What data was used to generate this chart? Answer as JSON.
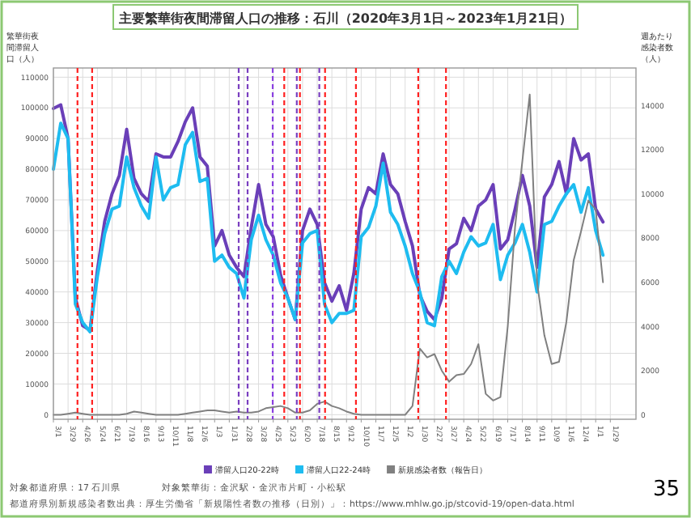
{
  "chart_data": {
    "type": "line",
    "title": "主要繁華街夜間滞留人口の推移：石川（2020年3月1日～2023年1月21日）",
    "ylabel": "繁華街夜間滞留人口（人）",
    "y2label": "週あたり感染者数（人）",
    "x": [
      "2020-03-01",
      "2020-03-15",
      "2020-03-29",
      "2020-04-12",
      "2020-04-26",
      "2020-05-10",
      "2020-05-24",
      "2020-06-07",
      "2020-06-21",
      "2020-07-05",
      "2020-07-19",
      "2020-08-02",
      "2020-08-16",
      "2020-08-30",
      "2020-09-13",
      "2020-09-27",
      "2020-10-11",
      "2020-10-25",
      "2020-11-08",
      "2020-11-22",
      "2020-12-06",
      "2020-12-20",
      "2021-01-03",
      "2021-01-17",
      "2021-01-31",
      "2021-02-14",
      "2021-02-28",
      "2021-03-14",
      "2021-03-28",
      "2021-04-11",
      "2021-04-25",
      "2021-05-09",
      "2021-05-23",
      "2021-06-06",
      "2021-06-20",
      "2021-07-04",
      "2021-07-18",
      "2021-08-01",
      "2021-08-15",
      "2021-08-29",
      "2021-09-12",
      "2021-09-26",
      "2021-10-10",
      "2021-10-24",
      "2021-11-07",
      "2021-11-21",
      "2021-12-05",
      "2021-12-19",
      "2022-01-02",
      "2022-01-16",
      "2022-01-30",
      "2022-02-13",
      "2022-02-27",
      "2022-03-13",
      "2022-03-27",
      "2022-04-10",
      "2022-04-24",
      "2022-05-08",
      "2022-05-22",
      "2022-06-05",
      "2022-06-19",
      "2022-07-03",
      "2022-07-17",
      "2022-07-31",
      "2022-08-14",
      "2022-08-28",
      "2022-09-11",
      "2022-09-25",
      "2022-10-09",
      "2022-10-23",
      "2022-11-06",
      "2022-11-20",
      "2022-12-04",
      "2022-12-18",
      "2023-01-01",
      "2023-01-15"
    ],
    "series": [
      {
        "name": "滞留人口20-22時",
        "color": "#6a3fb8",
        "values": [
          99800,
          101000,
          90000,
          38000,
          29000,
          27500,
          47000,
          63000,
          72000,
          78000,
          93000,
          77000,
          72000,
          69500,
          85000,
          84000,
          84000,
          89000,
          95500,
          100000,
          84000,
          81000,
          55000,
          60000,
          52000,
          48000,
          45000,
          61000,
          75000,
          62000,
          58000,
          45500,
          38000,
          31000,
          60000,
          67000,
          62000,
          43000,
          37000,
          42000,
          34000,
          46000,
          67000,
          74000,
          72000,
          85000,
          75000,
          72000,
          63000,
          55000,
          39000,
          33700,
          31000,
          38000,
          54000,
          55700,
          64000,
          60000,
          68000,
          70000,
          75000,
          54000,
          57000,
          67000,
          78000,
          68000,
          48000,
          71000,
          75000,
          82500,
          72000,
          90000,
          83000,
          85000,
          67000,
          62800
        ]
      },
      {
        "name": "滞留人口22-24時",
        "color": "#1ebcf0",
        "values": [
          80000,
          95000,
          90000,
          36000,
          30000,
          27000,
          45000,
          59000,
          67000,
          68000,
          84000,
          74000,
          68000,
          64000,
          84000,
          70000,
          74000,
          75000,
          88000,
          92000,
          76000,
          77000,
          50000,
          52000,
          48000,
          46000,
          38000,
          57000,
          65000,
          57000,
          52000,
          43000,
          38000,
          31000,
          56000,
          59000,
          60000,
          36000,
          30000,
          33000,
          33000,
          34000,
          58000,
          61000,
          68000,
          82000,
          66000,
          62000,
          55000,
          46000,
          40000,
          30000,
          29000,
          45000,
          50000,
          46000,
          53000,
          58000,
          55000,
          56000,
          62000,
          44000,
          52000,
          56000,
          62000,
          53000,
          40000,
          62000,
          63000,
          68000,
          72000,
          75000,
          66000,
          74000,
          60000,
          52000
        ]
      },
      {
        "name": "新規感染者数（報告日）",
        "color": "#808080",
        "axis": "y2",
        "values": [
          0,
          0,
          50,
          100,
          50,
          0,
          0,
          0,
          0,
          0,
          50,
          150,
          100,
          50,
          0,
          0,
          0,
          0,
          50,
          100,
          150,
          200,
          200,
          150,
          100,
          150,
          100,
          100,
          150,
          300,
          350,
          400,
          300,
          100,
          100,
          200,
          500,
          600,
          400,
          300,
          150,
          50,
          0,
          0,
          0,
          0,
          0,
          0,
          0,
          400,
          3000,
          2600,
          2750,
          2000,
          1500,
          1800,
          1850,
          2300,
          3200,
          950,
          650,
          800,
          4000,
          8500,
          11500,
          14500,
          6000,
          3600,
          2300,
          2400,
          4200,
          7000,
          8300,
          9700,
          9300,
          6000
        ]
      }
    ],
    "xlim": [
      "2020-03-01",
      "2023-03-19"
    ],
    "xticks": [
      {
        "value": "2020-03-01",
        "label": "3/1"
      },
      {
        "value": "2020-03-29",
        "label": "3/29"
      },
      {
        "value": "2020-04-26",
        "label": "4/26"
      },
      {
        "value": "2020-05-24",
        "label": "5/24"
      },
      {
        "value": "2020-06-21",
        "label": "6/21"
      },
      {
        "value": "2020-07-19",
        "label": "7/19"
      },
      {
        "value": "2020-08-16",
        "label": "8/16"
      },
      {
        "value": "2020-09-13",
        "label": "9/13"
      },
      {
        "value": "2020-10-11",
        "label": "10/11"
      },
      {
        "value": "2020-11-08",
        "label": "11/8"
      },
      {
        "value": "2020-12-06",
        "label": "12/6"
      },
      {
        "value": "2021-01-03",
        "label": "1/3"
      },
      {
        "value": "2021-01-31",
        "label": "1/31"
      },
      {
        "value": "2021-02-28",
        "label": "2/28"
      },
      {
        "value": "2021-03-28",
        "label": "3/28"
      },
      {
        "value": "2021-04-25",
        "label": "4/25"
      },
      {
        "value": "2021-05-23",
        "label": "5/23"
      },
      {
        "value": "2021-06-20",
        "label": "6/20"
      },
      {
        "value": "2021-07-18",
        "label": "7/18"
      },
      {
        "value": "2021-08-15",
        "label": "8/15"
      },
      {
        "value": "2021-09-12",
        "label": "9/12"
      },
      {
        "value": "2021-10-10",
        "label": "10/10"
      },
      {
        "value": "2021-11-07",
        "label": "11/7"
      },
      {
        "value": "2021-12-05",
        "label": "12/5"
      },
      {
        "value": "2022-01-02",
        "label": "1/2"
      },
      {
        "value": "2022-01-30",
        "label": "1/30"
      },
      {
        "value": "2022-02-27",
        "label": "2/27"
      },
      {
        "value": "2022-03-27",
        "label": "3/27"
      },
      {
        "value": "2022-04-24",
        "label": "4/24"
      },
      {
        "value": "2022-05-22",
        "label": "5/22"
      },
      {
        "value": "2022-06-19",
        "label": "6/19"
      },
      {
        "value": "2022-07-17",
        "label": "7/17"
      },
      {
        "value": "2022-08-14",
        "label": "8/14"
      },
      {
        "value": "2022-09-11",
        "label": "9/11"
      },
      {
        "value": "2022-10-09",
        "label": "10/9"
      },
      {
        "value": "2022-11-06",
        "label": "11/6"
      },
      {
        "value": "2022-12-04",
        "label": "12/4"
      },
      {
        "value": "2023-01-01",
        "label": "1/1"
      },
      {
        "value": "2023-01-29",
        "label": "1/29"
      }
    ],
    "ylim": [
      -1500,
      113000
    ],
    "yticks": [
      0,
      10000,
      20000,
      30000,
      40000,
      50000,
      60000,
      70000,
      80000,
      90000,
      100000,
      110000
    ],
    "y2lim": [
      -200,
      15700
    ],
    "y2ticks": [
      0,
      2000,
      4000,
      6000,
      8000,
      10000,
      12000,
      14000
    ],
    "ref_lines": [
      {
        "axis": "x",
        "value": "2020-04-16",
        "color": "#ff2020",
        "line_style": "dashed"
      },
      {
        "axis": "x",
        "value": "2020-05-14",
        "color": "#ff2020",
        "line_style": "dashed"
      },
      {
        "axis": "x",
        "value": "2021-02-18",
        "color": "#7a3fc0",
        "line_style": "dashed"
      },
      {
        "axis": "x",
        "value": "2021-03-07",
        "color": "#7a3fc0",
        "line_style": "dashed"
      },
      {
        "axis": "x",
        "value": "2021-04-24",
        "color": "#8a3fe0",
        "line_style": "dashed"
      },
      {
        "axis": "x",
        "value": "2021-05-16",
        "color": "#ff2020",
        "line_style": "dashed"
      },
      {
        "axis": "x",
        "value": "2021-06-09",
        "color": "#7a3fc0",
        "line_style": "dashed"
      },
      {
        "axis": "x",
        "value": "2021-06-15",
        "color": "#ff2020",
        "line_style": "dashed"
      },
      {
        "axis": "x",
        "value": "2021-07-22",
        "color": "#7a3fc0",
        "line_style": "dashed"
      },
      {
        "axis": "x",
        "value": "2021-08-02",
        "color": "#ff2020",
        "line_style": "dashed"
      },
      {
        "axis": "x",
        "value": "2021-09-30",
        "color": "#ff2020",
        "line_style": "dashed"
      },
      {
        "axis": "x",
        "value": "2022-01-27",
        "color": "#ff2020",
        "line_style": "dashed"
      },
      {
        "axis": "x",
        "value": "2022-03-21",
        "color": "#ff2020",
        "line_style": "dashed"
      }
    ],
    "grid": true,
    "legend": "bottom",
    "annotations": [
      "対象都道府県：17 石川県",
      "対象繁華街：金沢駅・金沢市片町・小松駅",
      "都道府県別新規感染者数出典：厚生労働省「新規陽性者数の推移（日別）」：https://www.mhlw.go.jp/stcovid-19/open-data.html",
      "35"
    ]
  }
}
